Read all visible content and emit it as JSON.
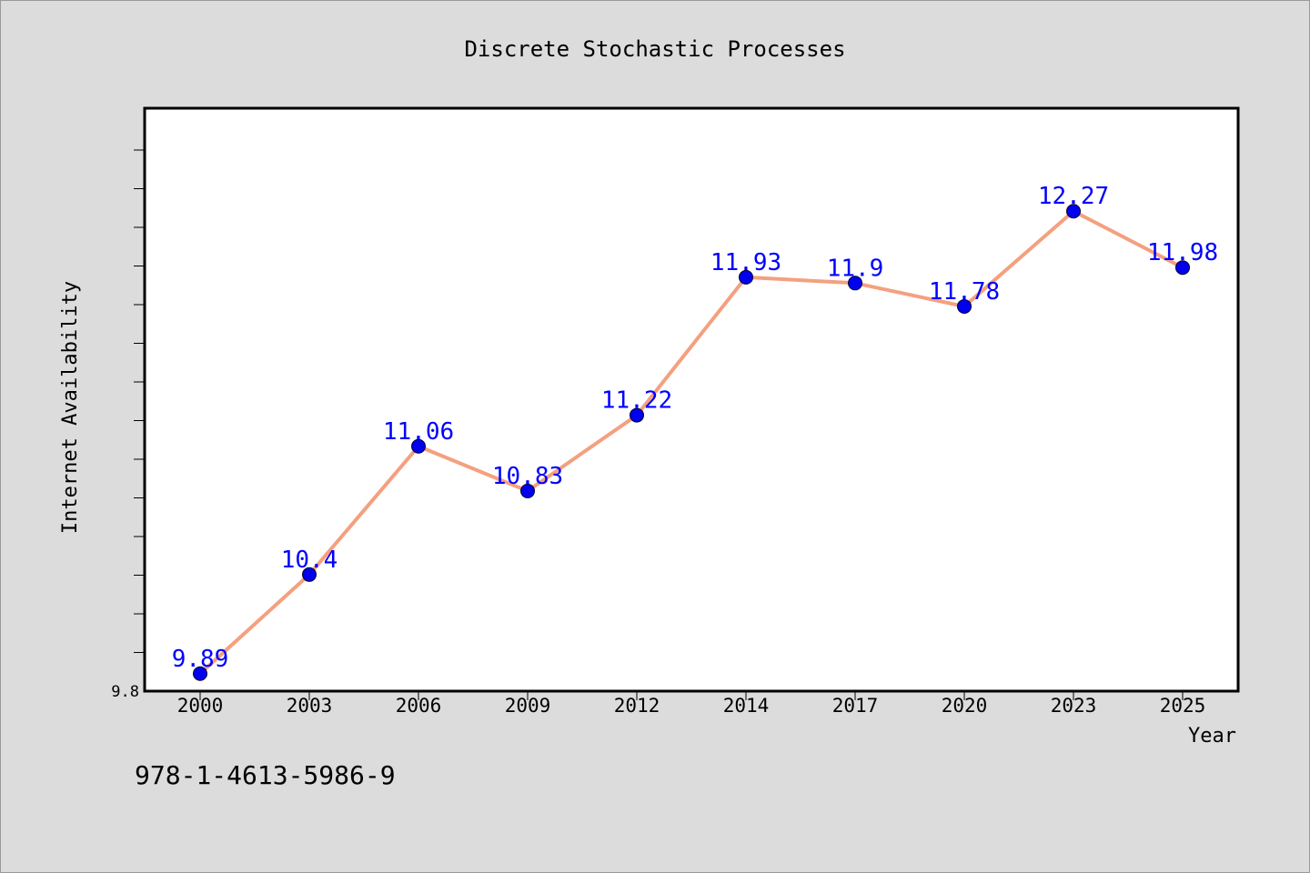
{
  "chart_data": {
    "type": "line",
    "title": "Discrete Stochastic Processes",
    "xlabel": "Year",
    "ylabel": "Internet Availability",
    "categories": [
      "2000",
      "2003",
      "2006",
      "2009",
      "2012",
      "2014",
      "2017",
      "2020",
      "2023",
      "2025"
    ],
    "series": [
      {
        "values": [
          9.89,
          10.4,
          11.06,
          10.83,
          11.22,
          11.93,
          11.9,
          11.78,
          12.27,
          11.98
        ],
        "data_labels": [
          "9.89",
          "10.4",
          "11.06",
          "10.83",
          "11.22",
          "11.93",
          "11.9",
          "11.78",
          "12.27",
          "11.98"
        ]
      }
    ],
    "ylim": [
      9.8,
      12.8
    ],
    "y_tick_labels": [
      "9.8"
    ],
    "grid": false,
    "legend": "none",
    "colors": {
      "line": "#f4a07f",
      "marker": "#0000ee",
      "data_label": "#0000ff",
      "plot_bg": "#ffffff",
      "page_bg": "#dcdcdc"
    }
  },
  "footer": {
    "isbn": "978-1-4613-5986-9"
  }
}
